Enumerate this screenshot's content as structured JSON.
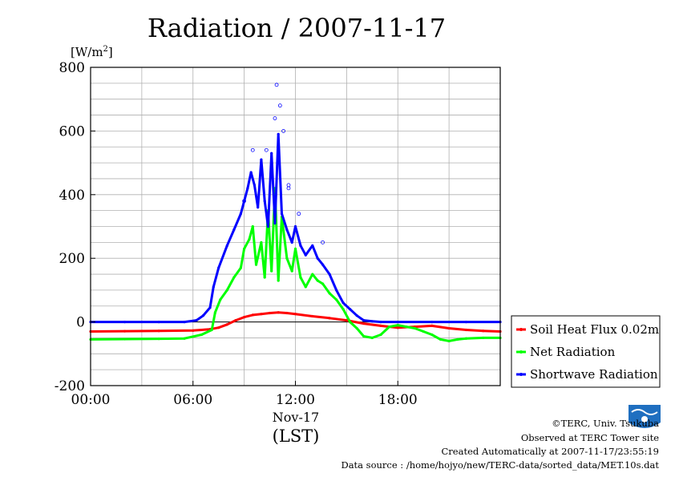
{
  "chart_data": {
    "type": "line",
    "title": "Radiation / 2007-11-17",
    "ylabel_unit_base": "[W/m",
    "ylabel_unit_sup": "2",
    "ylabel_unit_end": "]",
    "ylim": [
      -200,
      800
    ],
    "yticks": [
      "800",
      "600",
      "400",
      "200",
      "0",
      "-200"
    ],
    "yticks_values": [
      800,
      600,
      400,
      200,
      0,
      -200
    ],
    "xlim": [
      0,
      24
    ],
    "xticks": [
      "00:00",
      "06:00",
      "12:00",
      "18:00"
    ],
    "xticks_values": [
      0,
      6,
      12,
      18
    ],
    "xlabel_date": "Nov-17",
    "xlabel": "(LST)",
    "grid": true,
    "legend_position": "right",
    "series": [
      {
        "name": "Soil Heat Flux 0.02m",
        "color": "#ff0000",
        "x": [
          0,
          2,
          4,
          6,
          7,
          7.5,
          8,
          8.5,
          9,
          9.5,
          10,
          10.5,
          11,
          11.5,
          12,
          13,
          14,
          15,
          16,
          17,
          18,
          19,
          20,
          21,
          22,
          23,
          24
        ],
        "values": [
          -30,
          -29,
          -28,
          -27,
          -23,
          -18,
          -8,
          5,
          15,
          22,
          25,
          28,
          30,
          28,
          25,
          18,
          12,
          5,
          -5,
          -12,
          -18,
          -15,
          -12,
          -20,
          -25,
          -28,
          -30
        ]
      },
      {
        "name": "Net Radiation",
        "color": "#00ff00",
        "x": [
          0,
          2,
          4,
          5.5,
          6.5,
          7.1,
          7.3,
          7.6,
          8,
          8.4,
          8.8,
          9,
          9.3,
          9.5,
          9.7,
          10,
          10.2,
          10.4,
          10.6,
          10.8,
          11,
          11.2,
          11.5,
          11.8,
          12,
          12.3,
          12.6,
          13,
          13.3,
          13.6,
          14,
          14.4,
          14.8,
          15.2,
          15.6,
          16,
          16.5,
          17,
          17.5,
          18,
          18.5,
          19,
          19.5,
          20,
          20.5,
          21,
          21.5,
          22,
          23,
          24
        ],
        "values": [
          -55,
          -54,
          -53,
          -52,
          -40,
          -25,
          30,
          70,
          100,
          140,
          170,
          230,
          260,
          300,
          180,
          250,
          140,
          350,
          160,
          420,
          130,
          330,
          200,
          160,
          230,
          140,
          110,
          150,
          130,
          120,
          90,
          70,
          40,
          0,
          -20,
          -45,
          -50,
          -40,
          -15,
          -10,
          -15,
          -20,
          -30,
          -40,
          -55,
          -60,
          -55,
          -52,
          -50,
          -50
        ]
      },
      {
        "name": "Shortwave Radiation",
        "color": "#0000ff",
        "x": [
          0,
          2,
          4,
          5.5,
          6.2,
          6.6,
          7,
          7.2,
          7.5,
          8,
          8.4,
          8.8,
          9.2,
          9.4,
          9.6,
          9.8,
          10,
          10.2,
          10.4,
          10.6,
          10.8,
          11,
          11.2,
          11.5,
          11.8,
          12,
          12.3,
          12.6,
          13,
          13.3,
          13.6,
          14,
          14.4,
          14.8,
          15.2,
          15.6,
          16,
          16.5,
          17,
          18,
          20,
          22,
          24
        ],
        "values": [
          0,
          0,
          0,
          0,
          5,
          20,
          45,
          110,
          170,
          240,
          290,
          340,
          420,
          470,
          430,
          360,
          510,
          380,
          300,
          530,
          310,
          590,
          340,
          290,
          250,
          300,
          240,
          210,
          240,
          200,
          180,
          150,
          100,
          60,
          40,
          20,
          5,
          2,
          0,
          0,
          0,
          0,
          0
        ]
      }
    ],
    "scatter_spikes": [
      {
        "x": 9.5,
        "y": 540
      },
      {
        "x": 10.3,
        "y": 540
      },
      {
        "x": 10.8,
        "y": 640
      },
      {
        "x": 10.9,
        "y": 745
      },
      {
        "x": 11.1,
        "y": 680
      },
      {
        "x": 11.3,
        "y": 600
      },
      {
        "x": 11.6,
        "y": 420
      },
      {
        "x": 12.2,
        "y": 340
      },
      {
        "x": 13.6,
        "y": 250
      },
      {
        "x": 9.0,
        "y": 380
      },
      {
        "x": 11.6,
        "y": 430
      }
    ]
  },
  "credits": {
    "org": "©TERC, Univ. Tsukuba",
    "site": "Observed at TERC Tower site",
    "created": "Created Automatically at 2007-11-17/23:55:19",
    "source": "Data source : /home/hojyo/new/TERC-data/sorted_data/MET.10s.dat"
  },
  "logo": {
    "text": "TERC"
  }
}
